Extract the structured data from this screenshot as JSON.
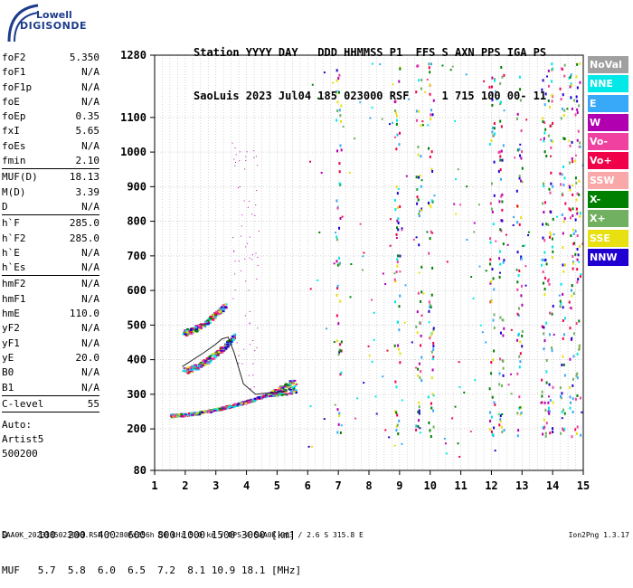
{
  "logo": {
    "top": "Lowell",
    "main": "DIGISONDE"
  },
  "header": {
    "line1": "Station YYYY DAY   DDD HHMMSS P1  FFS S AXN PPS IGA PS",
    "line2": "SaoLuis 2023 Jul04 185 023000 RSF     1 715 100 00- 11"
  },
  "params": [
    {
      "name": "foF2",
      "value": "5.350"
    },
    {
      "name": "foF1",
      "value": "N/A"
    },
    {
      "name": "foF1p",
      "value": "N/A"
    },
    {
      "name": "foE",
      "value": "N/A"
    },
    {
      "name": "foEp",
      "value": "0.35"
    },
    {
      "name": "fxI",
      "value": "5.65"
    },
    {
      "name": "foEs",
      "value": "N/A"
    },
    {
      "name": "fmin",
      "value": "2.10"
    },
    {
      "name": "MUF(D)",
      "value": "18.13",
      "divider_before": true
    },
    {
      "name": "M(D)",
      "value": "3.39"
    },
    {
      "name": "D",
      "value": "N/A"
    },
    {
      "name": "h`F",
      "value": "285.0",
      "divider_before": true
    },
    {
      "name": "h`F2",
      "value": "285.0"
    },
    {
      "name": "h`E",
      "value": "N/A"
    },
    {
      "name": "h`Es",
      "value": "N/A"
    },
    {
      "name": "hmF2",
      "value": "N/A",
      "divider_before": true
    },
    {
      "name": "hmF1",
      "value": "N/A"
    },
    {
      "name": "hmE",
      "value": "110.0"
    },
    {
      "name": "yF2",
      "value": "N/A"
    },
    {
      "name": "yF1",
      "value": "N/A"
    },
    {
      "name": "yE",
      "value": "20.0"
    },
    {
      "name": "B0",
      "value": "N/A"
    },
    {
      "name": "B1",
      "value": "N/A"
    },
    {
      "name": "C-level",
      "value": "55",
      "divider_before": true
    }
  ],
  "auto": {
    "line1": "Auto:",
    "line2": "Artist5",
    "line3": "500200"
  },
  "legend": [
    {
      "label": "NoVal",
      "color": "#a0a0a0"
    },
    {
      "label": "NNE",
      "color": "#00e8e8"
    },
    {
      "label": "E",
      "color": "#38a8f8"
    },
    {
      "label": "W",
      "color": "#b000b0"
    },
    {
      "label": "Vo-",
      "color": "#f040a0"
    },
    {
      "label": "Vo+",
      "color": "#f00048"
    },
    {
      "label": "SSW",
      "color": "#f8a8a8"
    },
    {
      "label": "X-",
      "color": "#008000"
    },
    {
      "label": "X+",
      "color": "#70b060"
    },
    {
      "label": "SSE",
      "color": "#e8e010"
    },
    {
      "label": "NNW",
      "color": "#2000d0"
    }
  ],
  "muf_table": {
    "d_line": "D     100  200  400  600  800 1000 1500 3000 [km]",
    "muf_line": "MUF   5.7  5.8  6.0  6.5  7.2  8.1 10.9 18.1 [MHz]"
  },
  "footer": {
    "left": "SAA0K_2023185023000.RSF / 280fx256h 50 kHz 5.0 km / DPS-4 SAA0K 903 / 2.6 S 315.8 E",
    "right": "Ion2Png 1.3.17"
  },
  "chart_data": {
    "type": "scatter",
    "xlim": [
      1,
      15
    ],
    "ylim": [
      80,
      1280
    ],
    "x_ticks": [
      1,
      2,
      3,
      4,
      5,
      6,
      7,
      8,
      9,
      10,
      11,
      12,
      13,
      14,
      15
    ],
    "y_ticks": [
      80,
      200,
      300,
      400,
      500,
      600,
      700,
      800,
      900,
      1000,
      1100,
      1280
    ],
    "grid": "dotted",
    "legend_position": "right",
    "traces": [
      {
        "name": "F-trace",
        "x_start": 1.5,
        "x_end": 5.6,
        "y_start": 240,
        "y_end": 330
      },
      {
        "name": "2F-trace",
        "x_start": 1.9,
        "x_end": 3.6,
        "y_start": 370,
        "y_end": 470
      },
      {
        "name": "upper-trace",
        "x_start": 1.9,
        "x_end": 3.3,
        "y_start": 480,
        "y_end": 560
      }
    ],
    "profile_curve": [
      [
        1.9,
        380
      ],
      [
        2.6,
        420
      ],
      [
        3.0,
        445
      ],
      [
        3.2,
        460
      ],
      [
        3.4,
        465
      ],
      [
        3.6,
        420
      ],
      [
        3.9,
        330
      ],
      [
        4.3,
        300
      ],
      [
        5.35,
        310
      ]
    ]
  }
}
